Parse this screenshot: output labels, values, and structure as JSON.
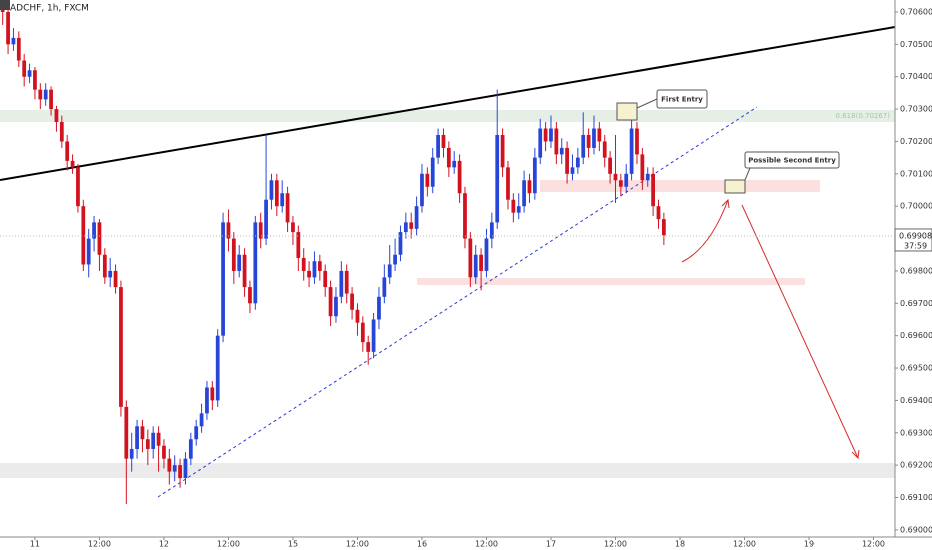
{
  "chart_data": {
    "type": "candlestick",
    "symbol": "ADCHF, 1h, FXCM",
    "up_color": "#2746d8",
    "down_color": "#d3121f",
    "ylim": [
      0.68978,
      0.70637
    ],
    "yticks": [
      {
        "value": 0.706,
        "label": "0.70600"
      },
      {
        "value": 0.705,
        "label": "0.70500"
      },
      {
        "value": 0.704,
        "label": "0.70400"
      },
      {
        "value": 0.703,
        "label": "0.70300"
      },
      {
        "value": 0.702,
        "label": "0.70200"
      },
      {
        "value": 0.701,
        "label": "0.70100"
      },
      {
        "value": 0.7,
        "label": "0.70000"
      },
      {
        "value": 0.699,
        "label": "0.69900"
      },
      {
        "value": 0.698,
        "label": "0.69800"
      },
      {
        "value": 0.697,
        "label": "0.69700"
      },
      {
        "value": 0.696,
        "label": "0.69600"
      },
      {
        "value": 0.695,
        "label": "0.69500"
      },
      {
        "value": 0.694,
        "label": "0.69400"
      },
      {
        "value": 0.693,
        "label": "0.69300"
      },
      {
        "value": 0.692,
        "label": "0.69200"
      },
      {
        "value": 0.691,
        "label": "0.69100"
      },
      {
        "value": 0.69,
        "label": "0.69000"
      }
    ],
    "xlim": [
      -0.5,
      166
    ],
    "xticks": [
      {
        "value": 6,
        "label": "11"
      },
      {
        "value": 18,
        "label": "12:00"
      },
      {
        "value": 30,
        "label": "12"
      },
      {
        "value": 42,
        "label": "12:00"
      },
      {
        "value": 54,
        "label": "15"
      },
      {
        "value": 66,
        "label": "12:00"
      },
      {
        "value": 78,
        "label": "16"
      },
      {
        "value": 90,
        "label": "12:00"
      },
      {
        "value": 102,
        "label": "17"
      },
      {
        "value": 114,
        "label": "12:00"
      },
      {
        "value": 126,
        "label": "18"
      },
      {
        "value": 138,
        "label": "12:00"
      },
      {
        "value": 150,
        "label": "19"
      },
      {
        "value": 162,
        "label": "12:00"
      }
    ],
    "last_price": 0.69908,
    "countdown": "37:59",
    "annotations": [
      "First Entry",
      "Possible Second Entry",
      "0.618(0.70267)"
    ],
    "candles": [
      [
        0.7062,
        0.7064,
        0.7056,
        0.706
      ],
      [
        0.706,
        0.7063,
        0.7047,
        0.705
      ],
      [
        0.705,
        0.7055,
        0.7048,
        0.7052
      ],
      [
        0.7052,
        0.7054,
        0.7043,
        0.7045
      ],
      [
        0.7045,
        0.7047,
        0.7037,
        0.704
      ],
      [
        0.704,
        0.7044,
        0.7038,
        0.7042
      ],
      [
        0.7042,
        0.7043,
        0.7033,
        0.7036
      ],
      [
        0.7036,
        0.7038,
        0.703,
        0.7033
      ],
      [
        0.7033,
        0.7038,
        0.7031,
        0.7036
      ],
      [
        0.7036,
        0.7037,
        0.7028,
        0.703
      ],
      [
        0.703,
        0.7031,
        0.7023,
        0.7026
      ],
      [
        0.7026,
        0.7028,
        0.7018,
        0.702
      ],
      [
        0.702,
        0.7022,
        0.7011,
        0.7014
      ],
      [
        0.7014,
        0.7016,
        0.701,
        0.7012
      ],
      [
        0.7012,
        0.7013,
        0.6998,
        0.7
      ],
      [
        0.7,
        0.7002,
        0.698,
        0.6982
      ],
      [
        0.6982,
        0.6993,
        0.6978,
        0.699
      ],
      [
        0.699,
        0.6997,
        0.6986,
        0.6995
      ],
      [
        0.6995,
        0.6996,
        0.698,
        0.6985
      ],
      [
        0.6985,
        0.6987,
        0.6976,
        0.6978
      ],
      [
        0.6978,
        0.6984,
        0.6975,
        0.698
      ],
      [
        0.698,
        0.6982,
        0.6973,
        0.6975
      ],
      [
        0.6975,
        0.6977,
        0.6935,
        0.6938
      ],
      [
        0.6938,
        0.694,
        0.6908,
        0.6922
      ],
      [
        0.6922,
        0.693,
        0.6918,
        0.6925
      ],
      [
        0.6925,
        0.6934,
        0.6922,
        0.6932
      ],
      [
        0.6932,
        0.6934,
        0.6924,
        0.6928
      ],
      [
        0.6928,
        0.6931,
        0.692,
        0.6925
      ],
      [
        0.6925,
        0.6932,
        0.6922,
        0.693
      ],
      [
        0.693,
        0.6932,
        0.6918,
        0.6926
      ],
      [
        0.6926,
        0.6928,
        0.6919,
        0.6922
      ],
      [
        0.6922,
        0.6925,
        0.6914,
        0.6918
      ],
      [
        0.6918,
        0.6923,
        0.6915,
        0.692
      ],
      [
        0.692,
        0.6922,
        0.6913,
        0.6916
      ],
      [
        0.6916,
        0.6924,
        0.6914,
        0.6922
      ],
      [
        0.6922,
        0.693,
        0.692,
        0.6928
      ],
      [
        0.6928,
        0.6934,
        0.6926,
        0.6932
      ],
      [
        0.6932,
        0.6939,
        0.693,
        0.6936
      ],
      [
        0.6936,
        0.6946,
        0.6934,
        0.6944
      ],
      [
        0.6944,
        0.6946,
        0.6937,
        0.694
      ],
      [
        0.694,
        0.6962,
        0.6938,
        0.696
      ],
      [
        0.696,
        0.6998,
        0.6958,
        0.6995
      ],
      [
        0.6995,
        0.6999,
        0.6986,
        0.699
      ],
      [
        0.699,
        0.6992,
        0.6976,
        0.698
      ],
      [
        0.698,
        0.6988,
        0.6978,
        0.6985
      ],
      [
        0.6985,
        0.6987,
        0.6972,
        0.6975
      ],
      [
        0.6975,
        0.6977,
        0.6967,
        0.697
      ],
      [
        0.697,
        0.6997,
        0.6968,
        0.6995
      ],
      [
        0.6995,
        0.6998,
        0.6987,
        0.699
      ],
      [
        0.699,
        0.7022,
        0.6988,
        0.7002
      ],
      [
        0.7002,
        0.701,
        0.6999,
        0.7008
      ],
      [
        0.7008,
        0.701,
        0.6997,
        0.7
      ],
      [
        0.7,
        0.7008,
        0.6998,
        0.7004
      ],
      [
        0.7004,
        0.7006,
        0.6992,
        0.6995
      ],
      [
        0.6995,
        0.6997,
        0.6988,
        0.6992
      ],
      [
        0.6992,
        0.6994,
        0.698,
        0.6984
      ],
      [
        0.6984,
        0.6987,
        0.6977,
        0.698
      ],
      [
        0.698,
        0.6983,
        0.6975,
        0.6978
      ],
      [
        0.6978,
        0.6986,
        0.6976,
        0.6983
      ],
      [
        0.6983,
        0.6985,
        0.6977,
        0.698
      ],
      [
        0.698,
        0.6982,
        0.6972,
        0.6975
      ],
      [
        0.6975,
        0.6977,
        0.6963,
        0.6966
      ],
      [
        0.6966,
        0.6975,
        0.6964,
        0.6972
      ],
      [
        0.6972,
        0.6983,
        0.697,
        0.698
      ],
      [
        0.698,
        0.6982,
        0.697,
        0.6973
      ],
      [
        0.6973,
        0.6975,
        0.6965,
        0.6968
      ],
      [
        0.6968,
        0.697,
        0.696,
        0.6964
      ],
      [
        0.6964,
        0.6966,
        0.6955,
        0.6958
      ],
      [
        0.6958,
        0.696,
        0.6951,
        0.6955
      ],
      [
        0.6955,
        0.6967,
        0.6953,
        0.6965
      ],
      [
        0.6965,
        0.6975,
        0.6962,
        0.6972
      ],
      [
        0.6972,
        0.6982,
        0.697,
        0.6978
      ],
      [
        0.6978,
        0.6988,
        0.6976,
        0.6982
      ],
      [
        0.6982,
        0.699,
        0.698,
        0.6985
      ],
      [
        0.6985,
        0.6994,
        0.6983,
        0.6992
      ],
      [
        0.6992,
        0.6998,
        0.699,
        0.6995
      ],
      [
        0.6995,
        0.6998,
        0.699,
        0.6993
      ],
      [
        0.6993,
        0.7003,
        0.6991,
        0.7
      ],
      [
        0.7,
        0.7013,
        0.6998,
        0.701
      ],
      [
        0.701,
        0.7012,
        0.7003,
        0.7006
      ],
      [
        0.7006,
        0.7018,
        0.7004,
        0.7015
      ],
      [
        0.7015,
        0.7024,
        0.7013,
        0.7022
      ],
      [
        0.7022,
        0.7024,
        0.7015,
        0.7018
      ],
      [
        0.7018,
        0.702,
        0.7009,
        0.7012
      ],
      [
        0.7012,
        0.7017,
        0.701,
        0.7014
      ],
      [
        0.7014,
        0.7016,
        0.7001,
        0.7004
      ],
      [
        0.7004,
        0.7006,
        0.6987,
        0.699
      ],
      [
        0.699,
        0.6992,
        0.6975,
        0.6978
      ],
      [
        0.6978,
        0.6988,
        0.6976,
        0.6985
      ],
      [
        0.6985,
        0.6987,
        0.6974,
        0.698
      ],
      [
        0.698,
        0.6993,
        0.6978,
        0.699
      ],
      [
        0.699,
        0.6998,
        0.6987,
        0.6995
      ],
      [
        0.6995,
        0.7036,
        0.6993,
        0.7022
      ],
      [
        0.7022,
        0.7024,
        0.7009,
        0.7012
      ],
      [
        0.7012,
        0.7014,
        0.6999,
        0.7002
      ],
      [
        0.7002,
        0.7004,
        0.6995,
        0.6998
      ],
      [
        0.6998,
        0.7004,
        0.6996,
        0.7
      ],
      [
        0.7,
        0.7011,
        0.6998,
        0.7008
      ],
      [
        0.7008,
        0.701,
        0.7001,
        0.7004
      ],
      [
        0.7004,
        0.7018,
        0.7002,
        0.7015
      ],
      [
        0.7015,
        0.7027,
        0.7013,
        0.7024
      ],
      [
        0.7024,
        0.7026,
        0.7017,
        0.702
      ],
      [
        0.702,
        0.7028,
        0.7018,
        0.7024
      ],
      [
        0.7024,
        0.7026,
        0.7013,
        0.7016
      ],
      [
        0.7016,
        0.7021,
        0.7013,
        0.7018
      ],
      [
        0.7018,
        0.702,
        0.7007,
        0.701
      ],
      [
        0.701,
        0.7016,
        0.7008,
        0.7012
      ],
      [
        0.7012,
        0.7018,
        0.701,
        0.7015
      ],
      [
        0.7015,
        0.7029,
        0.7013,
        0.7022
      ],
      [
        0.7022,
        0.7024,
        0.7015,
        0.7018
      ],
      [
        0.7018,
        0.7028,
        0.7016,
        0.7024
      ],
      [
        0.7024,
        0.7026,
        0.7017,
        0.702
      ],
      [
        0.702,
        0.7022,
        0.7012,
        0.7015
      ],
      [
        0.7015,
        0.7017,
        0.7007,
        0.701
      ],
      [
        0.701,
        0.7022,
        0.7001,
        0.7008
      ],
      [
        0.7008,
        0.701,
        0.7003,
        0.7006
      ],
      [
        0.7006,
        0.7013,
        0.7004,
        0.701
      ],
      [
        0.701,
        0.7027,
        0.7008,
        0.7024
      ],
      [
        0.7024,
        0.7026,
        0.7013,
        0.7016
      ],
      [
        0.7016,
        0.7018,
        0.7005,
        0.7008
      ],
      [
        0.7008,
        0.7012,
        0.7006,
        0.701
      ],
      [
        0.701,
        0.7012,
        0.6997,
        0.7
      ],
      [
        0.7,
        0.7002,
        0.6993,
        0.6996
      ],
      [
        0.6996,
        0.6998,
        0.6988,
        0.6991
      ]
    ]
  }
}
